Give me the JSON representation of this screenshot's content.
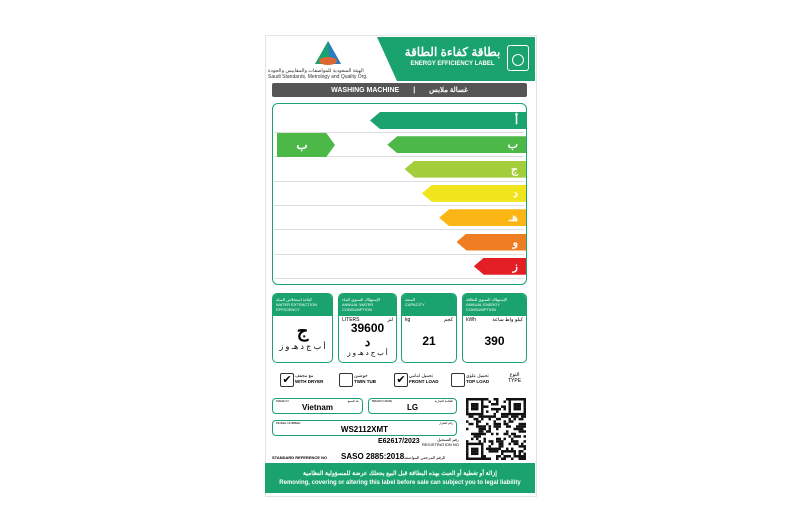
{
  "header": {
    "org_ar": "الهيئة السعودية للمواصفات والمقاييس والجودة",
    "org_en": "Saudi Standards, Metrology and Quality Org.",
    "logo_text": "SASO",
    "title_ar": "بطاقة كفاءة الطاقة",
    "title_en": "ENERGY EFFICIENCY LABEL",
    "icon": "washing-machine-icon"
  },
  "product": {
    "en": "WASHING MACHINE",
    "ar": "غسالة ملابس"
  },
  "scale": {
    "classes": [
      "أ",
      "ب",
      "ج",
      "د",
      "هـ",
      "و",
      "ز"
    ],
    "colors": [
      "#1aa36f",
      "#4cb848",
      "#a3cd39",
      "#f0e51c",
      "#fbb616",
      "#ef7d22",
      "#e31e24"
    ],
    "rating": "ب",
    "rating_index": 1
  },
  "metrics": [
    {
      "title_ar": "كفاءة استخلاص المياه",
      "title_en": "WATER EXTRACTION EFFICIENCY",
      "value": "ج",
      "scale": "أ ب ج د هـ و ز",
      "icon": "shirt-drip-icon"
    },
    {
      "title_ar": "الإستهلاك السنوي للماء",
      "title_en": "ANNUAL WATER CONSUMPTION",
      "unit_en": "LITERS",
      "unit_ar": "لتر",
      "value": "39600",
      "class": "د",
      "scale": "أ ب ج د هـ و ز",
      "icon": "faucet-icon"
    },
    {
      "title_ar": "السعة",
      "title_en": "CAPACITY",
      "unit_en": "kg",
      "unit_ar": "كجم",
      "value": "21",
      "icon": "shirt-kg-icon"
    },
    {
      "title_ar": "الإستهلاك السنوي للطاقة",
      "title_en": "ANNUAL ENERGY CONSUMPTION",
      "unit_en": "kWh",
      "unit_ar": "كيلو واط ساعة",
      "value": "390",
      "icon": "lightning-icon"
    }
  ],
  "types": [
    {
      "ar": "مع مجفف",
      "en": "WITH DRYER",
      "checked": true
    },
    {
      "ar": "حوضين",
      "en": "TWIN TUB",
      "checked": false
    },
    {
      "ar": "تحميل امامي",
      "en": "FRONT LOAD",
      "checked": true
    },
    {
      "ar": "تحميل علوي",
      "en": "TOP LOAD",
      "checked": false
    }
  ],
  "type_label": {
    "ar": "النوع",
    "en": "TYPE"
  },
  "info": {
    "made_in_label": "MADE IN",
    "made_in_label_ar": "بلد الصنع",
    "made_in": "Vietnam",
    "brand_label": "BRAND NAME",
    "brand_label_ar": "العلامة التجارية",
    "brand": "LG",
    "model_label": "MODEL NUMBER",
    "model_label_ar": "رقم الطراز",
    "model": "WS2112XMT",
    "registration": "E62617/2023",
    "registration_label_ar": "رقم التسجيل",
    "registration_label": "REGISTRATION NO",
    "standard_label": "STANDARD REFERENCE NO",
    "standard": "SASO 2885:2018",
    "standard_label_ar": "الرقم المرجعي المواصفة"
  },
  "footer": {
    "ar": "إزالة أو تغطية أو العبث بهذه البطاقة قبل البيع يجعلك عرضة للمسؤولية النظامية",
    "en": "Removing, covering or altering this label before sale can subject you to legal liability"
  }
}
